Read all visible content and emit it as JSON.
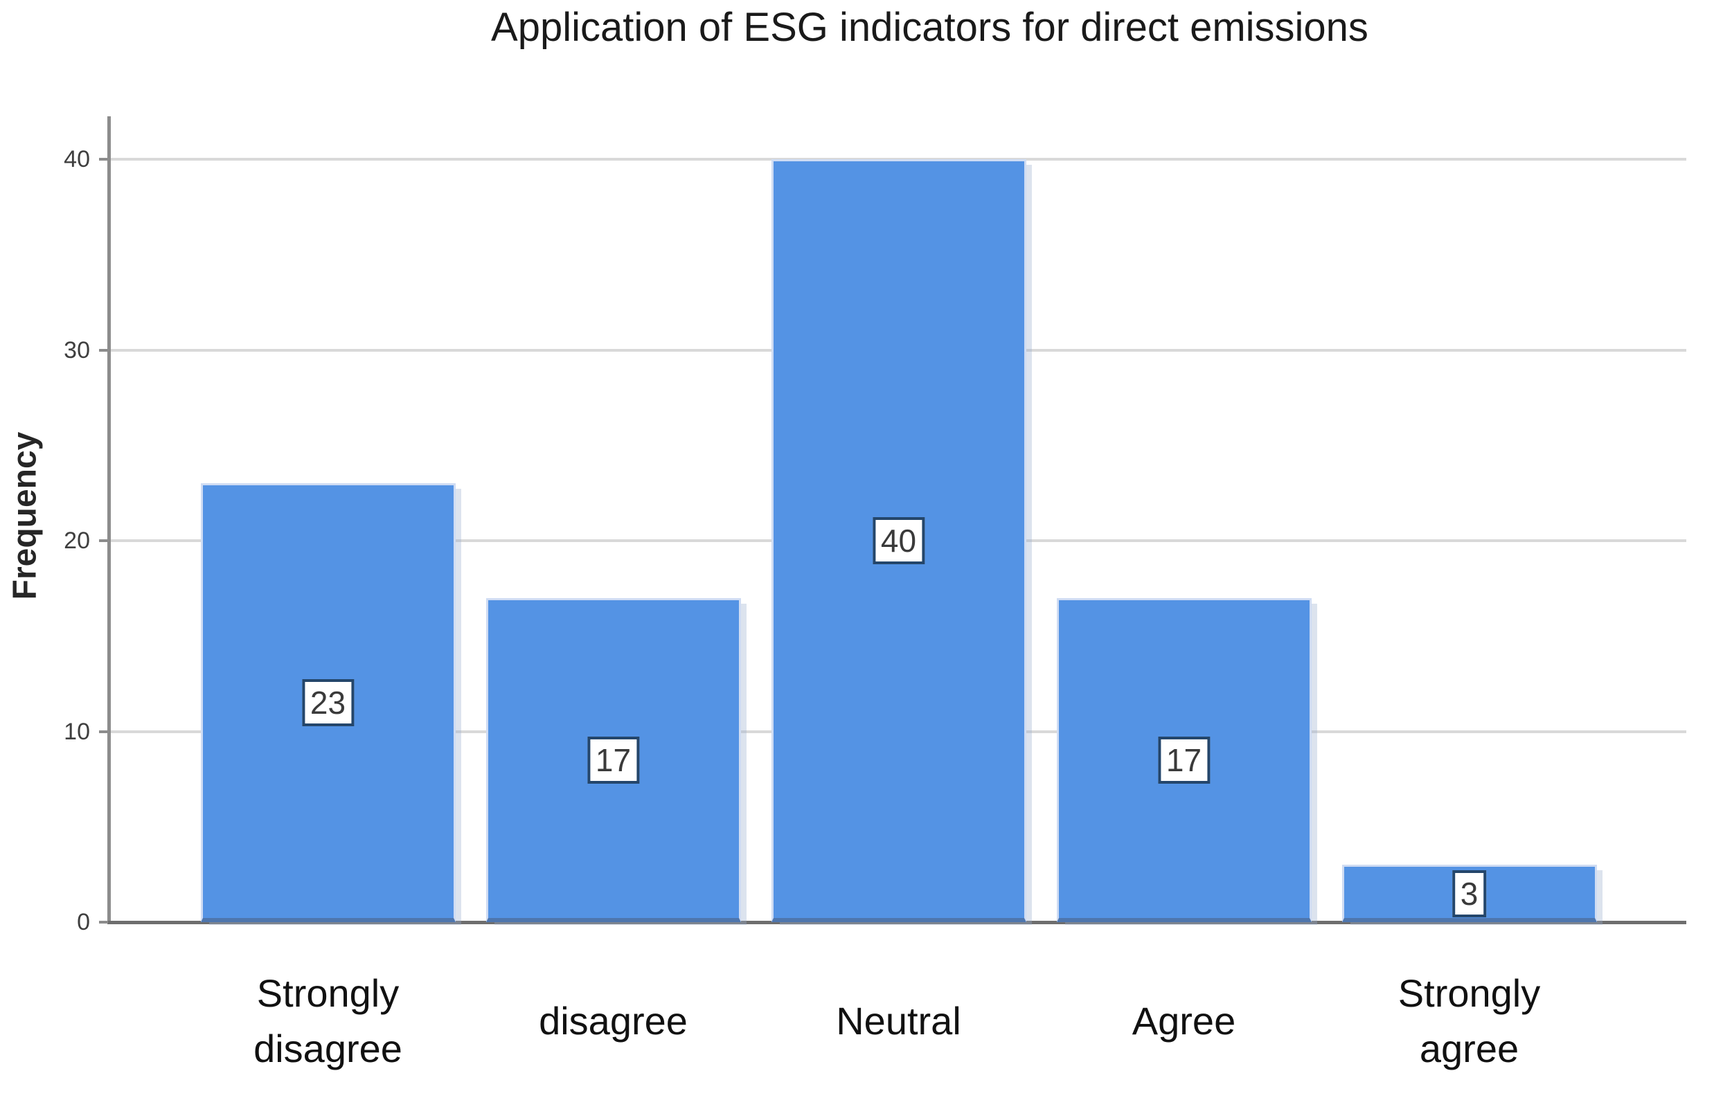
{
  "chart_data": {
    "type": "bar",
    "title": "Application of ESG indicators for direct emissions",
    "xlabel": "",
    "ylabel": "Frequency",
    "categories": [
      "Strongly\ndisagree",
      "disagree",
      "Neutral",
      "Agree",
      "Strongly\nagree"
    ],
    "values": [
      23,
      17,
      40,
      17,
      3
    ],
    "bar_value_labels": [
      "23",
      "17",
      "40",
      "17",
      "3"
    ],
    "yticks": [
      0,
      10,
      20,
      30,
      40
    ],
    "ylim": [
      0,
      42
    ],
    "grid": "horizontal gridlines at each y tick",
    "legend_position": "none",
    "colors": {
      "bar_fill": "#5493e4",
      "bar_halo": "#cfdcf3",
      "bar_shadow": "rgba(154,176,205,0.35)",
      "gridline": "#d9d9d9",
      "axis": "#8c8c8c",
      "baseline": "#6e6e6e",
      "tick_label": "#3f3f3f",
      "title_color": "#1a1a1a",
      "x_label_color": "#111111",
      "label_box_border": "#24466b",
      "label_box_bg": "#ffffff",
      "label_box_text": "#3a3a3a"
    }
  }
}
